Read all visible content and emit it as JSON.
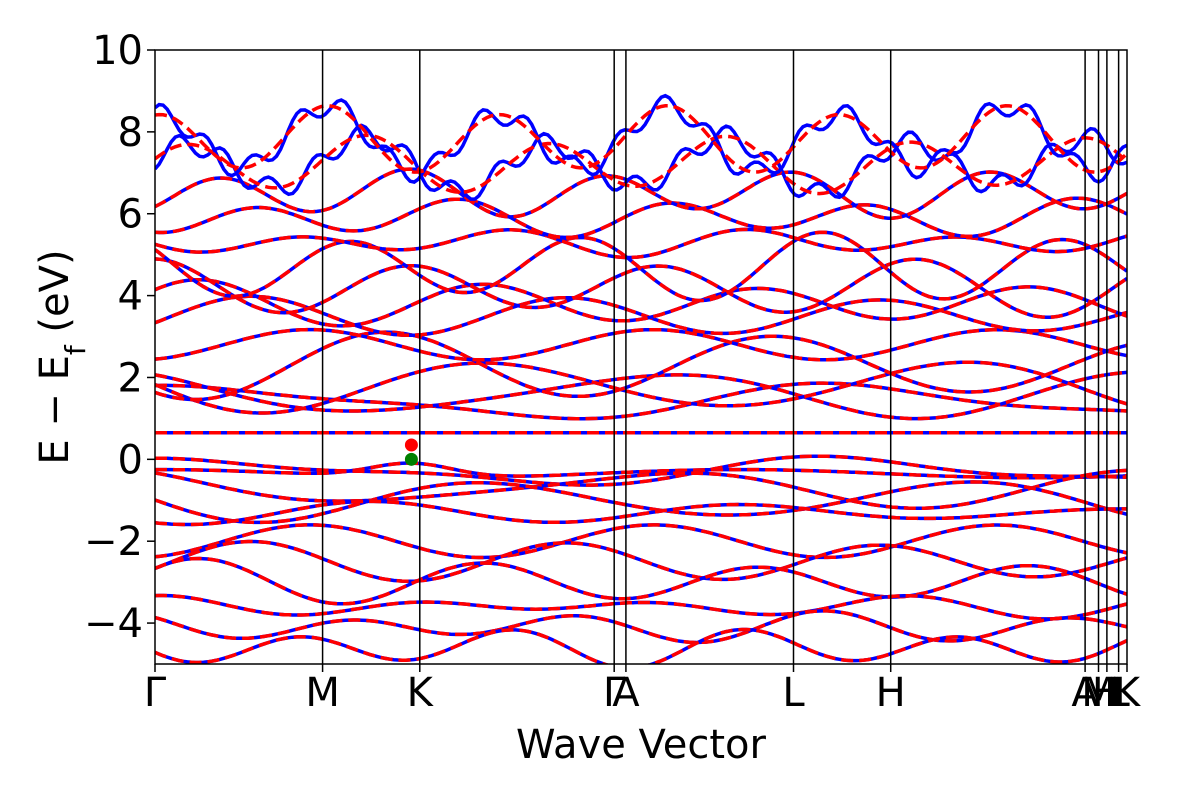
{
  "chart_data": {
    "type": "line",
    "xlabel": "Wave Vector",
    "ylabel": "E − E",
    "ylabel_subscript": "f",
    "ylabel_unit": " (eV)",
    "ylim": [
      -5,
      10
    ],
    "yticks": [
      -4,
      -2,
      0,
      2,
      4,
      6,
      8,
      10
    ],
    "ytick_labels": [
      "−4",
      "−2",
      "0",
      "2",
      "4",
      "6",
      "8",
      "10"
    ],
    "kpath_labels": [
      "Γ",
      "M",
      "K",
      "Γ",
      "A",
      "L",
      "H",
      "A",
      "M",
      "H",
      "L",
      "K"
    ],
    "kpath_positions": [
      0.0,
      1.0,
      1.58,
      2.74,
      2.81,
      3.81,
      4.39,
      5.55,
      5.63,
      5.68,
      5.75,
      5.8
    ],
    "grid": false,
    "legend": "none",
    "series": [
      {
        "color": "#0000ff",
        "style": "solid"
      },
      {
        "color": "#ff0000",
        "style": "dashed"
      }
    ],
    "markers": [
      {
        "x": 1.53,
        "y": 0.0,
        "color": "#008000"
      },
      {
        "x": 1.53,
        "y": 0.35,
        "color": "#ff0000"
      }
    ],
    "valence_bands_approx_eV": [
      0.0,
      -0.3,
      -0.7,
      -1.0,
      -1.3,
      -2.0,
      -2.5,
      -3.0,
      -3.6,
      -4.1,
      -4.6
    ],
    "conduction_bands_approx_eV": [
      0.65,
      1.4,
      1.6,
      1.8,
      2.3,
      2.8,
      3.5,
      3.8,
      4.2,
      4.7,
      5.3,
      5.9,
      6.5,
      7.2,
      7.8
    ]
  }
}
